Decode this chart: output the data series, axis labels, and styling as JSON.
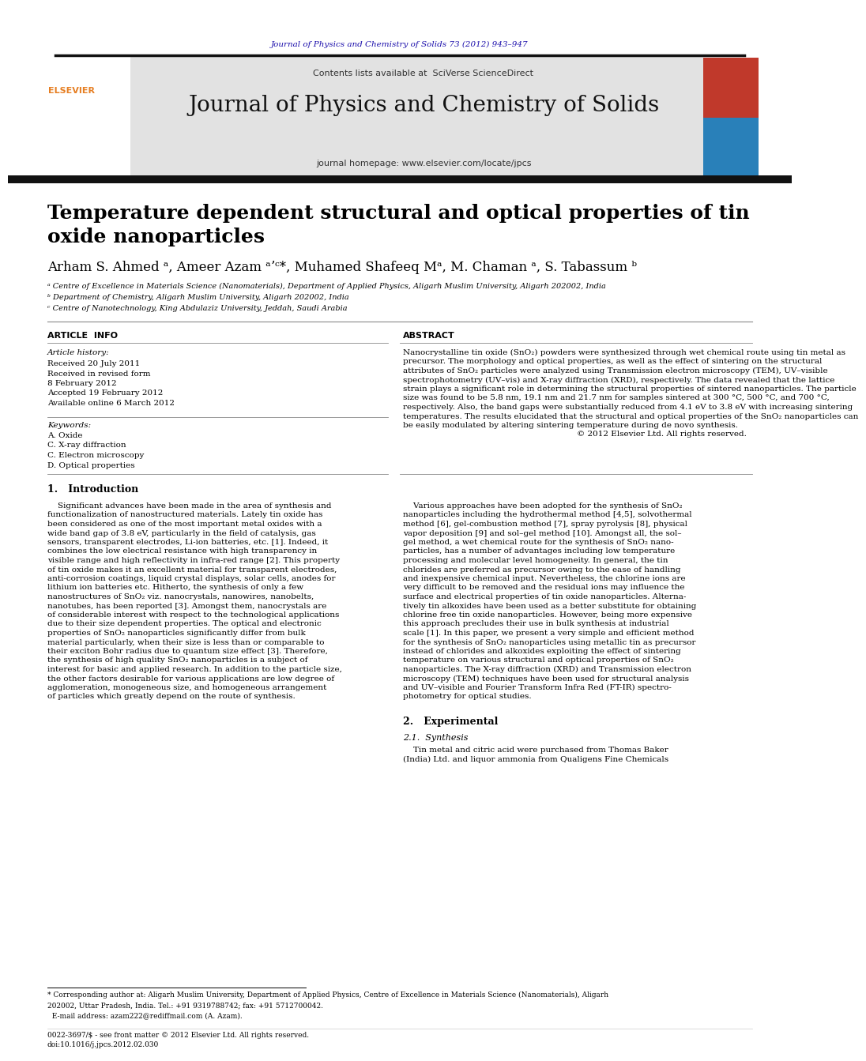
{
  "page_bg": "#ffffff",
  "journal_ref_color": "#1a0dab",
  "journal_ref": "Journal of Physics and Chemistry of Solids 73 (2012) 943–947",
  "header_bg": "#e0e0e0",
  "contents_text": "Contents lists available at ",
  "sciverse_text": "SciVerse ScienceDirect",
  "sciverse_color": "#1a6496",
  "journal_title": "Journal of Physics and Chemistry of Solids",
  "journal_title_fontsize": 20,
  "homepage_text": "journal homepage: ",
  "homepage_url": "www.elsevier.com/locate/jpcs",
  "homepage_url_color": "#1a6496",
  "article_title_line1": "Temperature dependent structural and optical properties of tin",
  "article_title_line2": "oxide nanoparticles",
  "article_title_fontsize": 18,
  "authors_line": "Arham S. Ahmed ᵃ, Ameer Azam ᵃʼᶜ*, Muhamed Shafeeq Mᵃ, M. Chaman ᵃ, S. Tabassum ᵇ",
  "authors_fontsize": 12,
  "affil_a": "ᵃ Centre of Excellence in Materials Science (Nanomaterials), Department of Applied Physics, Aligarh Muslim University, Aligarh 202002, India",
  "affil_b": "ᵇ Department of Chemistry, Aligarh Muslim University, Aligarh 202002, India",
  "affil_c": "ᶜ Centre of Nanotechnology, King Abdulaziz University, Jeddah, Saudi Arabia",
  "affil_fontsize": 7.0,
  "article_info_title": "ARTICLE  INFO",
  "abstract_title": "ABSTRACT",
  "article_history_label": "Article history:",
  "received1": "Received 20 July 2011",
  "received2": "Received in revised form",
  "received3": "8 February 2012",
  "accepted": "Accepted 19 February 2012",
  "available": "Available online 6 March 2012",
  "keywords_label": "Keywords:",
  "kw1": "A. Oxide",
  "kw2": "C. X-ray diffraction",
  "kw3": "C. Electron microscopy",
  "kw4": "D. Optical properties",
  "abstract_lines": [
    "Nanocrystalline tin oxide (SnO₂) powders were synthesized through wet chemical route using tin metal as",
    "precursor. The morphology and optical properties, as well as the effect of sintering on the structural",
    "attributes of SnO₂ particles were analyzed using Transmission electron microscopy (TEM), UV–visible",
    "spectrophotometry (UV–vis) and X-ray diffraction (XRD), respectively. The data revealed that the lattice",
    "strain plays a significant role in determining the structural properties of sintered nanoparticles. The particle",
    "size was found to be 5.8 nm, 19.1 nm and 21.7 nm for samples sintered at 300 °C, 500 °C, and 700 °C,",
    "respectively. Also, the band gaps were substantially reduced from 4.1 eV to 3.8 eV with increasing sintering",
    "temperatures. The results elucidated that the structural and optical properties of the SnO₂ nanoparticles can",
    "be easily modulated by altering sintering temperature during de novo synthesis."
  ],
  "copyright": "© 2012 Elsevier Ltd. All rights reserved.",
  "intro_title": "1.   Introduction",
  "intro_left_lines": [
    "    Significant advances have been made in the area of synthesis and",
    "functionalization of nanostructured materials. Lately tin oxide has",
    "been considered as one of the most important metal oxides with a",
    "wide band gap of 3.8 eV, particularly in the field of catalysis, gas",
    "sensors, transparent electrodes, Li-ion batteries, etc. [1]. Indeed, it",
    "combines the low electrical resistance with high transparency in",
    "visible range and high reflectivity in infra-red range [2]. This property",
    "of tin oxide makes it an excellent material for transparent electrodes,",
    "anti-corrosion coatings, liquid crystal displays, solar cells, anodes for",
    "lithium ion batteries etc. Hitherto, the synthesis of only a few",
    "nanostructures of SnO₂ viz. nanocrystals, nanowires, nanobelts,",
    "nanotubes, has been reported [3]. Amongst them, nanocrystals are",
    "of considerable interest with respect to the technological applications",
    "due to their size dependent properties. The optical and electronic",
    "properties of SnO₂ nanoparticles significantly differ from bulk",
    "material particularly, when their size is less than or comparable to",
    "their exciton Bohr radius due to quantum size effect [3]. Therefore,",
    "the synthesis of high quality SnO₂ nanoparticles is a subject of",
    "interest for basic and applied research. In addition to the particle size,",
    "the other factors desirable for various applications are low degree of",
    "agglomeration, monogeneous size, and homogeneous arrangement",
    "of particles which greatly depend on the route of synthesis."
  ],
  "intro_right_lines": [
    "    Various approaches have been adopted for the synthesis of SnO₂",
    "nanoparticles including the hydrothermal method [4,5], solvothermal",
    "method [6], gel-combustion method [7], spray pyrolysis [8], physical",
    "vapor deposition [9] and sol–gel method [10]. Amongst all, the sol–",
    "gel method, a wet chemical route for the synthesis of SnO₂ nano-",
    "particles, has a number of advantages including low temperature",
    "processing and molecular level homogeneity. In general, the tin",
    "chlorides are preferred as precursor owing to the ease of handling",
    "and inexpensive chemical input. Nevertheless, the chlorine ions are",
    "very difficult to be removed and the residual ions may influence the",
    "surface and electrical properties of tin oxide nanoparticles. Alterna-",
    "tively tin alkoxides have been used as a better substitute for obtaining",
    "chlorine free tin oxide nanoparticles. However, being more expensive",
    "this approach precludes their use in bulk synthesis at industrial",
    "scale [1]. In this paper, we present a very simple and efficient method",
    "for the synthesis of SnO₂ nanoparticles using metallic tin as precursor",
    "instead of chlorides and alkoxides exploiting the effect of sintering",
    "temperature on various structural and optical properties of SnO₂",
    "nanoparticles. The X-ray diffraction (XRD) and Transmission electron",
    "microscopy (TEM) techniques have been used for structural analysis",
    "and UV–visible and Fourier Transform Infra Red (FT-IR) spectro-",
    "photometry for optical studies."
  ],
  "section2_title": "2.   Experimental",
  "section21_title": "2.1.  Synthesis",
  "section21_lines": [
    "    Tin metal and citric acid were purchased from Thomas Baker",
    "(India) Ltd. and liquor ammonia from Qualigens Fine Chemicals"
  ],
  "footnote_line1": "* Corresponding author at: Aligarh Muslim University, Department of Applied Physics, Centre of Excellence in Materials Science (Nanomaterials), Aligarh",
  "footnote_line2": "202002, Uttar Pradesh, India. Tel.: +91 9319788742; fax: +91 5712700042.",
  "footnote_email": "  E-mail address: azam222@rediffmail.com (A. Azam).",
  "footer_left": "0022-3697/$ - see front matter © 2012 Elsevier Ltd. All rights reserved.",
  "footer_doi": "doi:10.1016/j.jpcs.2012.02.030"
}
